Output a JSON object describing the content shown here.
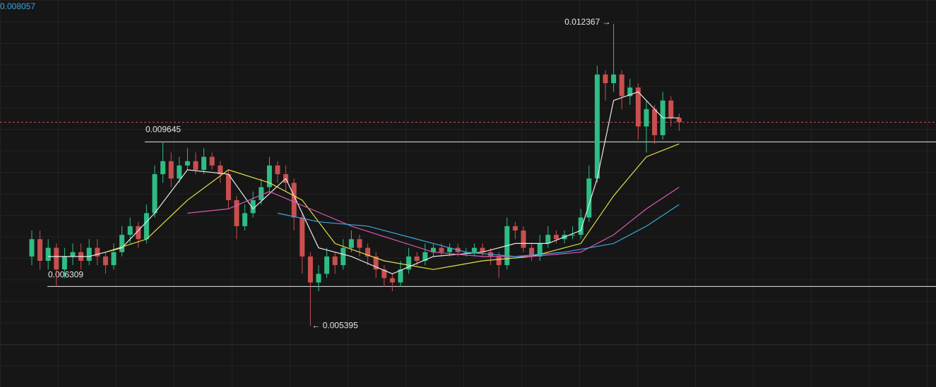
{
  "chart_data": {
    "type": "candlestick",
    "header_price": "0.008057",
    "ylim": [
      0.00498,
      0.01292
    ],
    "up_color": "#2ebd85",
    "down_color": "#c94f4f",
    "open": [
      0.007,
      0.0074,
      0.0069,
      0.0072,
      0.0067,
      0.007,
      0.0071,
      0.0069,
      0.0072,
      0.007,
      0.0068,
      0.0071,
      0.0075,
      0.0077,
      0.0074,
      0.008,
      0.0089,
      0.0092,
      0.0088,
      0.0091,
      0.0092,
      0.009,
      0.0093,
      0.0091,
      0.0089,
      0.0083,
      0.0077,
      0.008,
      0.0083,
      0.0086,
      0.0091,
      0.0089,
      0.0087,
      0.0079,
      0.007,
      0.0064,
      0.0066,
      0.007,
      0.0068,
      0.0072,
      0.0074,
      0.0072,
      0.007,
      0.0067,
      0.0065,
      0.0064,
      0.0067,
      0.007,
      0.0069,
      0.0071,
      0.0072,
      0.0071,
      0.0072,
      0.0071,
      0.0071,
      0.0072,
      0.0071,
      0.007,
      0.0068,
      0.0077,
      0.0076,
      0.0072,
      0.007,
      0.0073,
      0.0075,
      0.0074,
      0.0075,
      0.0075,
      0.0079,
      0.0088,
      0.0112,
      0.011,
      0.0112,
      0.0107,
      0.0109,
      0.01,
      0.0104,
      0.0098,
      0.0106,
      0.0102
    ],
    "high": [
      0.0076,
      0.0076,
      0.0074,
      0.0073,
      0.0072,
      0.0073,
      0.0073,
      0.0074,
      0.0074,
      0.0071,
      0.0073,
      0.0077,
      0.0079,
      0.0078,
      0.0082,
      0.0091,
      0.009645,
      0.0094,
      0.0093,
      0.0095,
      0.0094,
      0.0095,
      0.0094,
      0.0092,
      0.009,
      0.0084,
      0.0082,
      0.0085,
      0.0088,
      0.0093,
      0.0092,
      0.0091,
      0.0088,
      0.008,
      0.0071,
      0.0068,
      0.0072,
      0.0071,
      0.0074,
      0.0076,
      0.0075,
      0.0073,
      0.0071,
      0.0068,
      0.0066,
      0.0069,
      0.0072,
      0.0071,
      0.0073,
      0.0073,
      0.0073,
      0.0073,
      0.0073,
      0.0072,
      0.0073,
      0.0073,
      0.0072,
      0.0071,
      0.0079,
      0.0078,
      0.0077,
      0.0073,
      0.0075,
      0.0077,
      0.0076,
      0.0076,
      0.0077,
      0.0081,
      0.0091,
      0.0114,
      0.0113,
      0.012367,
      0.0113,
      0.0111,
      0.011,
      0.0106,
      0.0105,
      0.0108,
      0.0107,
      0.0103
    ],
    "low": [
      0.0068,
      0.0067,
      0.0067,
      0.006309,
      0.0065,
      0.0068,
      0.0067,
      0.0068,
      0.0068,
      0.0066,
      0.0067,
      0.007,
      0.0073,
      0.0072,
      0.0073,
      0.0079,
      0.0087,
      0.0086,
      0.0087,
      0.009,
      0.0089,
      0.0089,
      0.009,
      0.0087,
      0.0081,
      0.0074,
      0.0076,
      0.0079,
      0.0082,
      0.0085,
      0.0087,
      0.0085,
      0.0076,
      0.0066,
      0.005395,
      0.0062,
      0.0065,
      0.0066,
      0.0067,
      0.0071,
      0.007,
      0.0068,
      0.0065,
      0.0063,
      0.0062,
      0.0063,
      0.0066,
      0.0068,
      0.0068,
      0.007,
      0.007,
      0.007,
      0.007,
      0.007,
      0.007,
      0.007,
      0.0068,
      0.0065,
      0.0067,
      0.0074,
      0.0071,
      0.0069,
      0.0069,
      0.0072,
      0.0073,
      0.0073,
      0.0074,
      0.0074,
      0.0078,
      0.0087,
      0.0106,
      0.0108,
      0.0104,
      0.0105,
      0.0097,
      0.0094,
      0.0096,
      0.0097,
      0.01,
      0.0099
    ],
    "close": [
      0.0074,
      0.0069,
      0.0072,
      0.0067,
      0.007,
      0.0071,
      0.0069,
      0.0072,
      0.007,
      0.0068,
      0.0071,
      0.0075,
      0.0077,
      0.0074,
      0.008,
      0.0089,
      0.0092,
      0.0088,
      0.0091,
      0.0092,
      0.009,
      0.0093,
      0.0091,
      0.0089,
      0.0083,
      0.0077,
      0.008,
      0.0083,
      0.0086,
      0.0091,
      0.0089,
      0.0087,
      0.0079,
      0.007,
      0.0064,
      0.0066,
      0.007,
      0.0068,
      0.0072,
      0.0074,
      0.0072,
      0.007,
      0.0067,
      0.0065,
      0.0064,
      0.0067,
      0.007,
      0.0069,
      0.0071,
      0.0072,
      0.0071,
      0.0072,
      0.0071,
      0.0071,
      0.0072,
      0.0071,
      0.007,
      0.0068,
      0.0077,
      0.0076,
      0.0072,
      0.007,
      0.0073,
      0.0075,
      0.0074,
      0.0075,
      0.0075,
      0.0079,
      0.0088,
      0.0112,
      0.011,
      0.0112,
      0.0107,
      0.0109,
      0.01,
      0.0104,
      0.0098,
      0.0106,
      0.0102,
      0.0101
    ],
    "moving_averages": [
      {
        "color": "#e8e8e8",
        "x": [
          3,
          8,
          12,
          16,
          20,
          25,
          28,
          32,
          36,
          40,
          45,
          50,
          56,
          60,
          64,
          68,
          70,
          72,
          75,
          78,
          80
        ],
        "values": [
          0.007,
          0.007,
          0.0072,
          0.008,
          0.009,
          0.0089,
          0.0081,
          0.0088,
          0.0072,
          0.007,
          0.0066,
          0.007,
          0.0071,
          0.0073,
          0.0073,
          0.0076,
          0.0088,
          0.0106,
          0.0108,
          0.0102,
          0.0102
        ]
      },
      {
        "color": "#e6e04a",
        "x": [
          10,
          15,
          20,
          25,
          30,
          34,
          38,
          44,
          50,
          56,
          62,
          68,
          72,
          76,
          80
        ],
        "values": [
          0.0071,
          0.0074,
          0.0083,
          0.009,
          0.0087,
          0.0083,
          0.0073,
          0.0069,
          0.0067,
          0.0069,
          0.007,
          0.0073,
          0.0084,
          0.0093,
          0.0096
        ]
      },
      {
        "color": "#d95ab4",
        "x": [
          20,
          25,
          30,
          35,
          40,
          45,
          50,
          56,
          62,
          68,
          72,
          76,
          80
        ],
        "values": [
          0.008,
          0.0081,
          0.0085,
          0.0081,
          0.0077,
          0.0074,
          0.0071,
          0.007,
          0.007,
          0.0071,
          0.0075,
          0.0081,
          0.0086
        ]
      },
      {
        "color": "#3aa6e0",
        "x": [
          31,
          36,
          42,
          48,
          54,
          60,
          66,
          72,
          76,
          80
        ],
        "values": [
          0.008,
          0.0078,
          0.0077,
          0.0074,
          0.0071,
          0.007,
          0.0071,
          0.0073,
          0.0077,
          0.0082
        ]
      }
    ],
    "levels": [
      0.009645,
      0.006309
    ],
    "current_price": 0.0101,
    "annotations": [
      "0.012367 →",
      "← 0.005395"
    ]
  }
}
